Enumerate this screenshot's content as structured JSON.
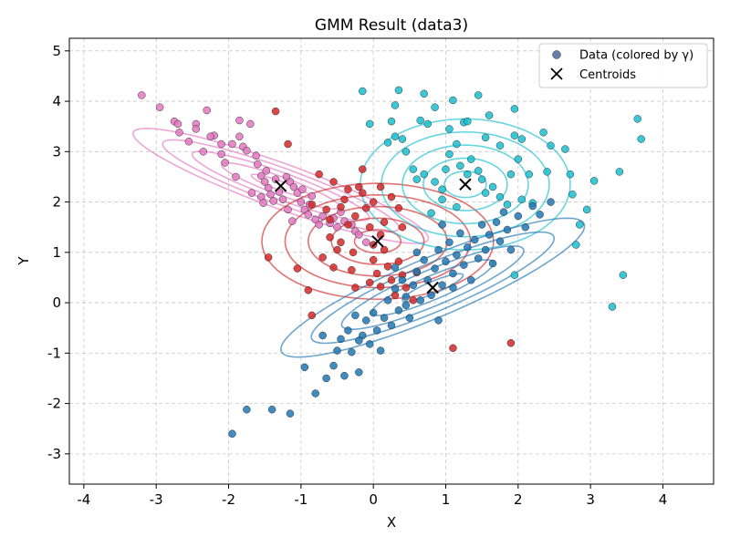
{
  "chart_data": {
    "type": "scatter",
    "title": "GMM Result (data3)",
    "xlabel": "X",
    "ylabel": "Y",
    "xlim": [
      -4.2,
      4.7
    ],
    "ylim": [
      -3.6,
      5.25
    ],
    "xticks": [
      "-4",
      "-3",
      "-2",
      "-1",
      "0",
      "1",
      "2",
      "3",
      "4"
    ],
    "yticks": [
      "-3",
      "-2",
      "-1",
      "0",
      "1",
      "2",
      "3",
      "4",
      "5"
    ],
    "grid": true,
    "legend": {
      "placement": "top-right",
      "entries": [
        "Data (colored by γ)",
        "Centroids"
      ]
    },
    "colors": {
      "pink": "#e377c2",
      "red": "#d62728",
      "cyan": "#17becf",
      "blue": "#1f77b4",
      "legend_marker": "#6a7ea8"
    },
    "clusters": [
      {
        "id": "pink",
        "color": "#e377c2",
        "centroid": [
          -1.28,
          2.32
        ],
        "ellipse": {
          "angle": -28,
          "semi_major": 2.3,
          "semi_minor": 0.42,
          "levels": 5
        },
        "points": [
          [
            -3.2,
            4.12
          ],
          [
            -2.95,
            3.88
          ],
          [
            -2.75,
            3.6
          ],
          [
            -2.7,
            3.55
          ],
          [
            -2.68,
            3.38
          ],
          [
            -2.45,
            3.55
          ],
          [
            -2.45,
            3.45
          ],
          [
            -2.3,
            3.82
          ],
          [
            -2.2,
            3.32
          ],
          [
            -2.25,
            3.3
          ],
          [
            -2.1,
            3.15
          ],
          [
            -2.1,
            2.95
          ],
          [
            -1.95,
            3.15
          ],
          [
            -1.85,
            3.62
          ],
          [
            -1.85,
            3.3
          ],
          [
            -1.7,
            3.55
          ],
          [
            -1.8,
            3.1
          ],
          [
            -1.75,
            3.02
          ],
          [
            -1.6,
            2.75
          ],
          [
            -1.55,
            2.52
          ],
          [
            -1.5,
            2.4
          ],
          [
            -1.45,
            2.28
          ],
          [
            -1.42,
            2.15
          ],
          [
            -1.35,
            2.45
          ],
          [
            -1.3,
            2.2
          ],
          [
            -1.25,
            2.05
          ],
          [
            -1.2,
            2.5
          ],
          [
            -1.15,
            2.4
          ],
          [
            -1.1,
            2.3
          ],
          [
            -1.05,
            2.18
          ],
          [
            -1.0,
            2.0
          ],
          [
            -0.95,
            1.85
          ],
          [
            -0.9,
            1.75
          ],
          [
            -0.85,
            2.12
          ],
          [
            -0.8,
            1.65
          ],
          [
            -0.75,
            1.55
          ],
          [
            -0.7,
            1.72
          ],
          [
            -0.6,
            1.58
          ],
          [
            -0.55,
            1.68
          ],
          [
            -0.5,
            1.5
          ],
          [
            -0.45,
            1.8
          ],
          [
            -0.4,
            1.62
          ],
          [
            -0.3,
            1.55
          ],
          [
            -0.25,
            1.42
          ],
          [
            -0.2,
            1.35
          ],
          [
            -0.1,
            1.2
          ],
          [
            -2.05,
            2.78
          ],
          [
            -1.9,
            2.5
          ],
          [
            -1.62,
            2.92
          ],
          [
            -1.55,
            2.1
          ],
          [
            -1.48,
            2.62
          ],
          [
            -1.38,
            2.02
          ],
          [
            -1.18,
            1.85
          ],
          [
            -0.98,
            2.25
          ],
          [
            -0.88,
            1.95
          ],
          [
            -1.68,
            2.18
          ],
          [
            -1.52,
            1.98
          ],
          [
            -1.12,
            1.62
          ],
          [
            -2.55,
            3.2
          ],
          [
            -2.35,
            3.0
          ]
        ]
      },
      {
        "id": "red",
        "color": "#d62728",
        "centroid": [
          0.06,
          1.22
        ],
        "ellipse": {
          "angle": 0,
          "semi_major": 1.6,
          "semi_minor": 1.15,
          "levels": 5
        },
        "points": [
          [
            -1.35,
            3.8
          ],
          [
            -1.18,
            3.15
          ],
          [
            -1.45,
            0.9
          ],
          [
            -1.05,
            0.68
          ],
          [
            -0.9,
            0.25
          ],
          [
            -0.85,
            -0.25
          ],
          [
            -0.65,
            1.85
          ],
          [
            -0.6,
            1.3
          ],
          [
            -0.55,
            0.7
          ],
          [
            -0.5,
            1.05
          ],
          [
            -0.45,
            1.9
          ],
          [
            -0.4,
            2.05
          ],
          [
            -0.35,
            2.25
          ],
          [
            -0.35,
            1.55
          ],
          [
            -0.3,
            0.65
          ],
          [
            -0.28,
            1.0
          ],
          [
            -0.25,
            1.72
          ],
          [
            -0.2,
            2.3
          ],
          [
            -0.15,
            2.18
          ],
          [
            -0.1,
            1.88
          ],
          [
            -0.05,
            1.5
          ],
          [
            0.0,
            1.15
          ],
          [
            0.0,
            0.85
          ],
          [
            0.05,
            0.58
          ],
          [
            0.1,
            1.35
          ],
          [
            0.1,
            0.32
          ],
          [
            0.15,
            1.05
          ],
          [
            0.2,
            0.72
          ],
          [
            0.25,
            0.45
          ],
          [
            0.3,
            0.15
          ],
          [
            0.35,
            0.82
          ],
          [
            0.4,
            0.55
          ],
          [
            0.45,
            0.3
          ],
          [
            -0.75,
            2.55
          ],
          [
            -0.55,
            2.4
          ],
          [
            -0.15,
            2.65
          ],
          [
            0.1,
            2.3
          ],
          [
            0.25,
            2.1
          ],
          [
            0.35,
            1.88
          ],
          [
            0.4,
            1.5
          ],
          [
            -0.6,
            1.65
          ],
          [
            -0.85,
            1.95
          ],
          [
            1.1,
            -0.9
          ],
          [
            1.9,
            -0.8
          ],
          [
            -0.05,
            0.4
          ],
          [
            -0.25,
            0.3
          ],
          [
            0.55,
            0.05
          ],
          [
            0.6,
            0.6
          ],
          [
            0.15,
            1.6
          ],
          [
            -0.45,
            1.2
          ],
          [
            -0.7,
            0.9
          ],
          [
            0.0,
            2.0
          ]
        ]
      },
      {
        "id": "cyan",
        "color": "#17becf",
        "centroid": [
          1.27,
          2.35
        ],
        "ellipse": {
          "angle": 0,
          "semi_major": 1.45,
          "semi_minor": 1.3,
          "levels": 5
        },
        "points": [
          [
            -0.15,
            4.2
          ],
          [
            0.35,
            4.22
          ],
          [
            0.7,
            4.15
          ],
          [
            1.1,
            4.02
          ],
          [
            1.45,
            4.12
          ],
          [
            1.6,
            3.72
          ],
          [
            1.95,
            3.85
          ],
          [
            0.3,
            3.92
          ],
          [
            0.65,
            3.62
          ],
          [
            0.85,
            3.88
          ],
          [
            1.05,
            3.45
          ],
          [
            1.25,
            3.58
          ],
          [
            1.55,
            3.28
          ],
          [
            1.75,
            3.12
          ],
          [
            1.95,
            3.32
          ],
          [
            2.05,
            3.25
          ],
          [
            2.35,
            3.38
          ],
          [
            2.45,
            3.12
          ],
          [
            2.65,
            3.05
          ],
          [
            2.15,
            2.55
          ],
          [
            2.4,
            2.6
          ],
          [
            2.72,
            2.55
          ],
          [
            2.75,
            2.15
          ],
          [
            2.85,
            1.55
          ],
          [
            2.8,
            1.15
          ],
          [
            2.95,
            1.85
          ],
          [
            3.05,
            2.42
          ],
          [
            3.4,
            2.6
          ],
          [
            3.65,
            3.65
          ],
          [
            3.7,
            3.25
          ],
          [
            3.45,
            0.55
          ],
          [
            3.3,
            -0.08
          ],
          [
            0.25,
            3.6
          ],
          [
            0.3,
            3.3
          ],
          [
            0.2,
            3.18
          ],
          [
            0.45,
            3.0
          ],
          [
            0.55,
            2.65
          ],
          [
            0.6,
            2.45
          ],
          [
            0.7,
            2.55
          ],
          [
            0.85,
            2.4
          ],
          [
            0.95,
            2.25
          ],
          [
            1.0,
            2.65
          ],
          [
            1.05,
            2.95
          ],
          [
            1.15,
            3.15
          ],
          [
            1.2,
            2.72
          ],
          [
            1.3,
            2.55
          ],
          [
            1.35,
            2.85
          ],
          [
            1.45,
            2.62
          ],
          [
            1.5,
            2.45
          ],
          [
            1.65,
            2.3
          ],
          [
            1.75,
            2.1
          ],
          [
            1.85,
            1.95
          ],
          [
            1.9,
            2.55
          ],
          [
            2.0,
            2.85
          ],
          [
            2.05,
            2.05
          ],
          [
            2.2,
            1.98
          ],
          [
            0.8,
            1.78
          ],
          [
            0.95,
            2.05
          ],
          [
            1.15,
            1.9
          ],
          [
            0.75,
            3.55
          ],
          [
            -0.05,
            3.55
          ],
          [
            1.55,
            2.18
          ],
          [
            1.95,
            0.55
          ],
          [
            0.4,
            3.25
          ],
          [
            1.3,
            3.6
          ]
        ]
      },
      {
        "id": "blue",
        "color": "#1f77b4",
        "centroid": [
          0.82,
          0.3
        ],
        "ellipse": {
          "angle": 32,
          "semi_major": 2.45,
          "semi_minor": 0.55,
          "levels": 5
        },
        "points": [
          [
            -1.95,
            -2.6
          ],
          [
            -1.75,
            -2.12
          ],
          [
            -1.4,
            -2.12
          ],
          [
            -1.15,
            -2.2
          ],
          [
            -0.95,
            -1.28
          ],
          [
            -0.8,
            -1.8
          ],
          [
            -0.65,
            -1.5
          ],
          [
            -0.55,
            -1.25
          ],
          [
            -0.5,
            -0.95
          ],
          [
            -0.45,
            -0.72
          ],
          [
            -0.4,
            -1.45
          ],
          [
            -0.35,
            -0.55
          ],
          [
            -0.3,
            -0.98
          ],
          [
            -0.25,
            -0.25
          ],
          [
            -0.2,
            -1.38
          ],
          [
            -0.15,
            -0.65
          ],
          [
            -0.1,
            -0.35
          ],
          [
            -0.05,
            -0.82
          ],
          [
            0.0,
            -0.2
          ],
          [
            0.05,
            -0.55
          ],
          [
            0.1,
            -0.95
          ],
          [
            0.15,
            -0.3
          ],
          [
            0.2,
            0.05
          ],
          [
            0.25,
            -0.45
          ],
          [
            0.3,
            0.28
          ],
          [
            0.35,
            -0.15
          ],
          [
            0.4,
            0.45
          ],
          [
            0.45,
            0.12
          ],
          [
            0.5,
            -0.3
          ],
          [
            0.55,
            0.35
          ],
          [
            0.6,
            0.62
          ],
          [
            0.65,
            0.05
          ],
          [
            0.7,
            0.85
          ],
          [
            0.75,
            0.45
          ],
          [
            0.8,
            0.15
          ],
          [
            0.85,
            0.68
          ],
          [
            0.9,
            1.05
          ],
          [
            0.95,
            0.35
          ],
          [
            1.0,
            0.82
          ],
          [
            1.05,
            1.2
          ],
          [
            1.1,
            0.58
          ],
          [
            1.15,
            0.95
          ],
          [
            1.2,
            1.38
          ],
          [
            1.25,
            0.75
          ],
          [
            1.3,
            1.1
          ],
          [
            1.35,
            0.45
          ],
          [
            1.4,
            1.25
          ],
          [
            1.45,
            0.88
          ],
          [
            1.5,
            1.55
          ],
          [
            1.55,
            1.05
          ],
          [
            1.6,
            1.35
          ],
          [
            1.65,
            0.78
          ],
          [
            1.7,
            1.6
          ],
          [
            1.75,
            1.22
          ],
          [
            1.8,
            1.8
          ],
          [
            1.85,
            1.45
          ],
          [
            1.9,
            1.05
          ],
          [
            2.0,
            1.72
          ],
          [
            2.1,
            1.5
          ],
          [
            2.2,
            1.92
          ],
          [
            2.3,
            1.75
          ],
          [
            2.45,
            2.0
          ],
          [
            -0.7,
            -0.65
          ],
          [
            -0.2,
            -0.75
          ],
          [
            0.45,
            -0.05
          ],
          [
            0.9,
            -0.35
          ],
          [
            1.1,
            0.3
          ],
          [
            0.6,
            1.0
          ],
          [
            0.3,
            0.7
          ],
          [
            0.95,
            1.55
          ]
        ]
      }
    ]
  }
}
